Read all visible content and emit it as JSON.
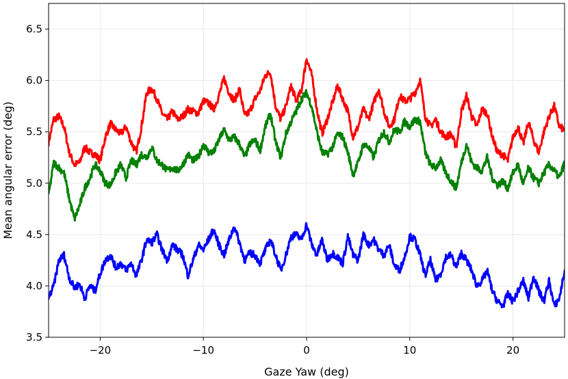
{
  "chart_data": {
    "type": "line",
    "title": "",
    "xlabel": "Gaze Yaw (deg)",
    "ylabel": "Mean angular error (deg)",
    "xlim": [
      -25,
      25
    ],
    "ylim": [
      3.5,
      6.75
    ],
    "xticks": [
      -20,
      -10,
      0,
      10,
      20
    ],
    "xtick_labels": [
      "−20",
      "−10",
      "0",
      "10",
      "20"
    ],
    "yticks": [
      3.5,
      4.0,
      4.5,
      5.0,
      5.5,
      6.0,
      6.5
    ],
    "ytick_labels": [
      "3.5",
      "4.0",
      "4.5",
      "5.0",
      "5.5",
      "6.0",
      "6.5"
    ],
    "grid": true,
    "legend": "none",
    "series": [
      {
        "color": "#ff0000",
        "x": [
          -25,
          -24.5,
          -24,
          -23.5,
          -23,
          -22.5,
          -22,
          -21.5,
          -21,
          -20.5,
          -20,
          -19.5,
          -19,
          -18.5,
          -18,
          -17.5,
          -17,
          -16.5,
          -16,
          -15.5,
          -15,
          -14.5,
          -14,
          -13.5,
          -13,
          -12.5,
          -12,
          -11.5,
          -11,
          -10.5,
          -10,
          -9.5,
          -9,
          -8.5,
          -8,
          -7.5,
          -7,
          -6.5,
          -6,
          -5.5,
          -5,
          -4.5,
          -4,
          -3.5,
          -3,
          -2.5,
          -2,
          -1.5,
          -1,
          -0.5,
          0,
          0.5,
          1,
          1.5,
          2,
          2.5,
          3,
          3.5,
          4,
          4.5,
          5,
          5.5,
          6,
          6.5,
          7,
          7.5,
          8,
          8.5,
          9,
          9.5,
          10,
          10.5,
          11,
          11.5,
          12,
          12.5,
          13,
          13.5,
          14,
          14.5,
          15,
          15.5,
          16,
          16.5,
          17,
          17.5,
          18,
          18.5,
          19,
          19.5,
          20,
          20.5,
          21,
          21.5,
          22,
          22.5,
          23,
          23.5,
          24,
          24.5,
          25
        ],
        "y": [
          5.4,
          5.62,
          5.65,
          5.55,
          5.3,
          5.18,
          5.2,
          5.35,
          5.3,
          5.28,
          5.22,
          5.45,
          5.58,
          5.52,
          5.48,
          5.55,
          5.4,
          5.3,
          5.55,
          5.88,
          5.92,
          5.82,
          5.68,
          5.62,
          5.7,
          5.62,
          5.65,
          5.72,
          5.7,
          5.68,
          5.8,
          5.78,
          5.72,
          5.85,
          6.02,
          5.88,
          5.8,
          5.92,
          5.65,
          5.7,
          5.82,
          5.9,
          6.05,
          6.08,
          5.75,
          5.62,
          5.75,
          5.95,
          5.8,
          5.9,
          6.22,
          6.05,
          5.72,
          5.48,
          5.62,
          5.78,
          5.95,
          5.82,
          5.7,
          5.45,
          5.55,
          5.72,
          5.62,
          5.78,
          5.92,
          5.7,
          5.55,
          5.62,
          5.85,
          5.8,
          5.82,
          5.88,
          6.0,
          5.65,
          5.55,
          5.62,
          5.5,
          5.45,
          5.48,
          5.35,
          5.7,
          5.85,
          5.65,
          5.55,
          5.72,
          5.68,
          5.45,
          5.3,
          5.28,
          5.22,
          5.45,
          5.55,
          5.38,
          5.6,
          5.42,
          5.3,
          5.5,
          5.65,
          5.75,
          5.55,
          5.52
        ]
      },
      {
        "color": "#008000",
        "x": [
          -25,
          -24.5,
          -24,
          -23.5,
          -23,
          -22.5,
          -22,
          -21.5,
          -21,
          -20.5,
          -20,
          -19.5,
          -19,
          -18.5,
          -18,
          -17.5,
          -17,
          -16.5,
          -16,
          -15.5,
          -15,
          -14.5,
          -14,
          -13.5,
          -13,
          -12.5,
          -12,
          -11.5,
          -11,
          -10.5,
          -10,
          -9.5,
          -9,
          -8.5,
          -8,
          -7.5,
          -7,
          -6.5,
          -6,
          -5.5,
          -5,
          -4.5,
          -4,
          -3.5,
          -3,
          -2.5,
          -2,
          -1.5,
          -1,
          -0.5,
          0,
          0.5,
          1,
          1.5,
          2,
          2.5,
          3,
          3.5,
          4,
          4.5,
          5,
          5.5,
          6,
          6.5,
          7,
          7.5,
          8,
          8.5,
          9,
          9.5,
          10,
          10.5,
          11,
          11.5,
          12,
          12.5,
          13,
          13.5,
          14,
          14.5,
          15,
          15.5,
          16,
          16.5,
          17,
          17.5,
          18,
          18.5,
          19,
          19.5,
          20,
          20.5,
          21,
          21.5,
          22,
          22.5,
          23,
          23.5,
          24,
          24.5,
          25
        ],
        "y": [
          4.88,
          5.2,
          5.15,
          5.1,
          4.85,
          4.65,
          4.78,
          4.95,
          5.05,
          5.18,
          5.12,
          5.0,
          4.98,
          5.1,
          5.18,
          5.05,
          5.22,
          5.18,
          5.28,
          5.25,
          5.35,
          5.22,
          5.18,
          5.12,
          5.15,
          5.12,
          5.18,
          5.28,
          5.22,
          5.25,
          5.38,
          5.3,
          5.3,
          5.42,
          5.52,
          5.42,
          5.45,
          5.38,
          5.25,
          5.38,
          5.42,
          5.32,
          5.55,
          5.68,
          5.4,
          5.25,
          5.48,
          5.6,
          5.7,
          5.82,
          5.88,
          5.75,
          5.5,
          5.3,
          5.28,
          5.35,
          5.48,
          5.45,
          5.3,
          5.08,
          5.2,
          5.38,
          5.35,
          5.25,
          5.42,
          5.5,
          5.4,
          5.52,
          5.5,
          5.6,
          5.55,
          5.62,
          5.6,
          5.3,
          5.18,
          5.15,
          5.22,
          5.1,
          5.02,
          4.95,
          5.2,
          5.38,
          5.2,
          5.15,
          5.12,
          5.25,
          5.05,
          4.98,
          5.02,
          4.95,
          5.1,
          5.18,
          4.98,
          5.15,
          5.05,
          5.0,
          5.1,
          5.18,
          5.12,
          5.05,
          5.2
        ]
      },
      {
        "color": "#0000ff",
        "x": [
          -25,
          -24.5,
          -24,
          -23.5,
          -23,
          -22.5,
          -22,
          -21.5,
          -21,
          -20.5,
          -20,
          -19.5,
          -19,
          -18.5,
          -18,
          -17.5,
          -17,
          -16.5,
          -16,
          -15.5,
          -15,
          -14.5,
          -14,
          -13.5,
          -13,
          -12.5,
          -12,
          -11.5,
          -11,
          -10.5,
          -10,
          -9.5,
          -9,
          -8.5,
          -8,
          -7.5,
          -7,
          -6.5,
          -6,
          -5.5,
          -5,
          -4.5,
          -4,
          -3.5,
          -3,
          -2.5,
          -2,
          -1.5,
          -1,
          -0.5,
          0,
          0.5,
          1,
          1.5,
          2,
          2.5,
          3,
          3.5,
          4,
          4.5,
          5,
          5.5,
          6,
          6.5,
          7,
          7.5,
          8,
          8.5,
          9,
          9.5,
          10,
          10.5,
          11,
          11.5,
          12,
          12.5,
          13,
          13.5,
          14,
          14.5,
          15,
          15.5,
          16,
          16.5,
          17,
          17.5,
          18,
          18.5,
          19,
          19.5,
          20,
          20.5,
          21,
          21.5,
          22,
          22.5,
          23,
          23.5,
          24,
          24.5,
          25
        ],
        "y": [
          3.88,
          4.0,
          4.25,
          4.3,
          4.08,
          3.98,
          4.02,
          3.88,
          4.0,
          3.95,
          4.12,
          4.25,
          4.3,
          4.18,
          4.22,
          4.15,
          4.22,
          4.1,
          4.25,
          4.45,
          4.42,
          4.5,
          4.35,
          4.25,
          4.4,
          4.35,
          4.3,
          4.1,
          4.25,
          4.4,
          4.35,
          4.45,
          4.55,
          4.4,
          4.3,
          4.45,
          4.58,
          4.42,
          4.25,
          4.32,
          4.3,
          4.22,
          4.35,
          4.45,
          4.3,
          4.15,
          4.3,
          4.48,
          4.5,
          4.45,
          4.6,
          4.4,
          4.3,
          4.45,
          4.25,
          4.32,
          4.28,
          4.22,
          4.48,
          4.3,
          4.25,
          4.5,
          4.4,
          4.45,
          4.35,
          4.3,
          4.4,
          4.2,
          4.15,
          4.28,
          4.48,
          4.45,
          4.3,
          4.1,
          4.25,
          4.05,
          4.12,
          4.28,
          4.3,
          4.18,
          4.32,
          4.25,
          4.15,
          4.0,
          4.05,
          4.15,
          3.95,
          3.85,
          3.8,
          3.92,
          3.85,
          3.95,
          4.05,
          3.88,
          4.1,
          3.95,
          3.85,
          4.05,
          3.8,
          3.88,
          4.15
        ]
      }
    ]
  }
}
